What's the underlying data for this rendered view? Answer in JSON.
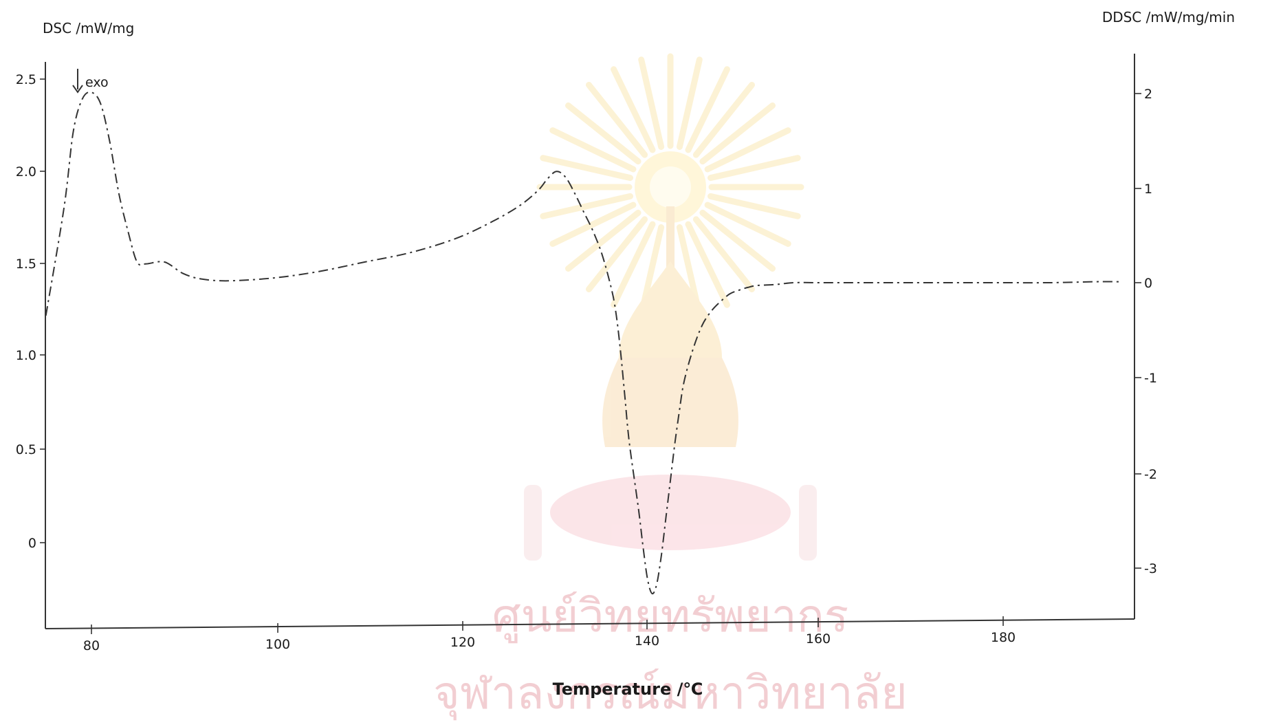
{
  "watermark": {
    "line1": "ศูนย์วิทยทรัพยากร",
    "line2": "จุฬาลงกรณ์มหาวิทยาลัย",
    "color": "#e9a7ae"
  },
  "chart_data": {
    "type": "line",
    "title": "",
    "xlabel": "Temperature /℃",
    "ylabel": "DSC /mW/mg",
    "y2label": "DDSC /mW/mg/min",
    "xlim": [
      75,
      193
    ],
    "ylim": [
      -0.45,
      2.6
    ],
    "y2lim": [
      -3.55,
      2.4
    ],
    "xticks": [
      "80",
      "100",
      "120",
      "140",
      "160",
      "180"
    ],
    "yticks": [
      "2.5",
      "2.0",
      "1.5",
      "1.0",
      "0.5",
      "0"
    ],
    "y2ticks": [
      "2",
      "1",
      "0",
      "-1",
      "-2",
      "-3"
    ],
    "annotation": "exo",
    "grid": false,
    "series": [
      {
        "axis": "right",
        "style": "dash-dot",
        "color": "#333333",
        "x": [
          75,
          77,
          78,
          79,
          80,
          81,
          82,
          83,
          84,
          85,
          86,
          88,
          90,
          92,
          95,
          100,
          105,
          110,
          115,
          120,
          124,
          127,
          129,
          130,
          131,
          132,
          133,
          134,
          135,
          136,
          137,
          137.5,
          138,
          138.5,
          139,
          140,
          140.5,
          141,
          141.5,
          142,
          142.5,
          143,
          143.5,
          144,
          144.5,
          145,
          146,
          147,
          148,
          149,
          150,
          151,
          152,
          153,
          155,
          157,
          160,
          165,
          170,
          175,
          180,
          185,
          190,
          193
        ],
        "y": [
          -0.35,
          0.8,
          1.6,
          1.95,
          2.02,
          1.9,
          1.5,
          0.95,
          0.55,
          0.22,
          0.2,
          0.22,
          0.1,
          0.04,
          0.02,
          0.05,
          0.12,
          0.22,
          0.32,
          0.47,
          0.65,
          0.82,
          0.98,
          1.1,
          1.18,
          1.12,
          0.95,
          0.75,
          0.55,
          0.3,
          -0.05,
          -0.3,
          -0.7,
          -1.2,
          -1.7,
          -2.4,
          -2.8,
          -3.15,
          -3.3,
          -3.2,
          -2.9,
          -2.5,
          -2.1,
          -1.7,
          -1.35,
          -1.05,
          -0.7,
          -0.45,
          -0.3,
          -0.2,
          -0.12,
          -0.08,
          -0.05,
          -0.03,
          -0.02,
          0.0,
          0.0,
          0.0,
          0.0,
          0.0,
          0.0,
          0.0,
          0.01,
          0.01
        ]
      }
    ]
  }
}
